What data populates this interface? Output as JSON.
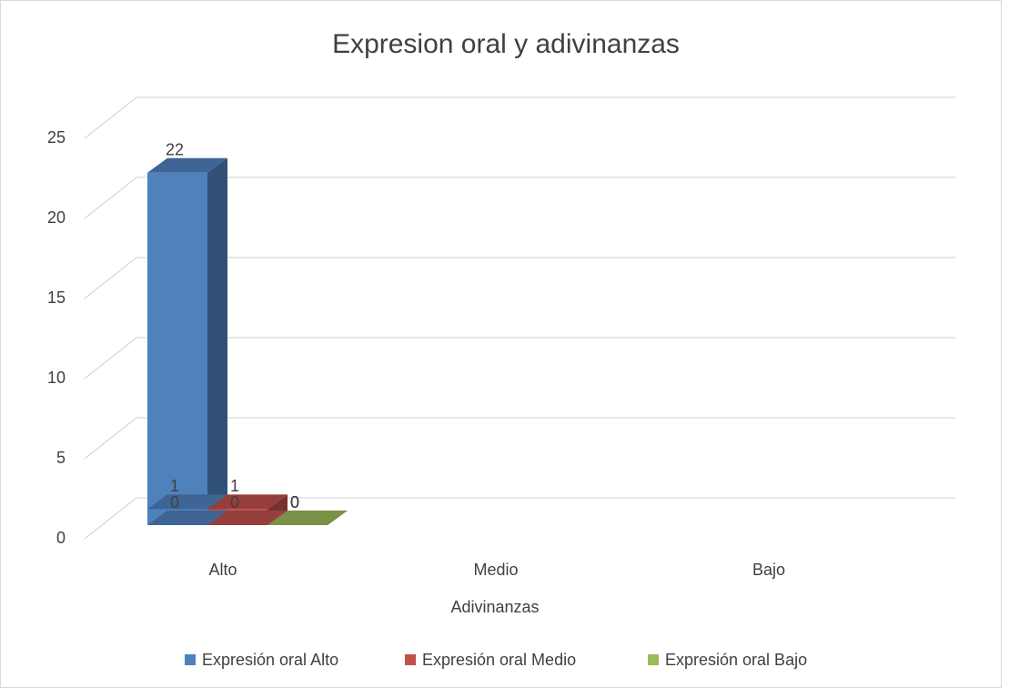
{
  "chart_data": {
    "type": "bar3d",
    "title": "Expresion oral y adivinanzas",
    "x_label": "Adivinanzas",
    "categories": [
      "Alto",
      "Medio",
      "Bajo"
    ],
    "series": [
      {
        "name": "Expresión oral Alto",
        "color": "#4f81bd",
        "values": [
          22,
          1,
          0
        ]
      },
      {
        "name": "Expresión oral Medio",
        "color": "#c0504d",
        "values": [
          0,
          1,
          0
        ]
      },
      {
        "name": "Expresión oral Bajo",
        "color": "#9bbb59",
        "values": [
          0,
          0,
          0
        ]
      }
    ],
    "ylim": [
      0,
      25
    ],
    "yticks": [
      0,
      5,
      10,
      15,
      20,
      25
    ],
    "grid": true,
    "legend": "bottom"
  }
}
